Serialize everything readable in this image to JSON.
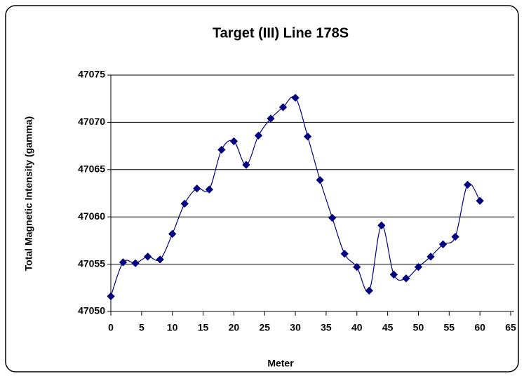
{
  "chart_data": {
    "type": "line",
    "title": "Target (III) Line 178S",
    "x_label": "Meter",
    "y_label": "Total Magnetic Intensity (gamma)",
    "x": [
      0,
      2,
      4,
      6,
      8,
      10,
      12,
      14,
      16,
      18,
      20,
      22,
      24,
      26,
      28,
      30,
      32,
      34,
      36,
      38,
      40,
      42,
      44,
      46,
      48,
      50,
      52,
      54,
      56,
      58,
      60
    ],
    "series": [
      {
        "name": "Line 178S",
        "color": "#000080",
        "values": [
          47051.6,
          47055.2,
          47055.1,
          47055.8,
          47055.5,
          47058.2,
          47061.4,
          47063.0,
          47062.9,
          47067.1,
          47068.0,
          47065.5,
          47068.6,
          47070.4,
          47071.6,
          47072.6,
          47068.5,
          47063.9,
          47059.9,
          47056.1,
          47054.7,
          47052.2,
          47059.1,
          47053.9,
          47053.5,
          47054.7,
          47055.8,
          47057.1,
          47057.9,
          47063.4,
          47061.7
        ]
      }
    ],
    "xlim": [
      0,
      65
    ],
    "xticks": [
      0,
      5,
      10,
      15,
      20,
      25,
      30,
      35,
      40,
      45,
      50,
      55,
      60,
      65
    ],
    "ylim": [
      47050,
      47075
    ],
    "yticks": [
      47050,
      47055,
      47060,
      47065,
      47070,
      47075
    ],
    "grid": true
  }
}
